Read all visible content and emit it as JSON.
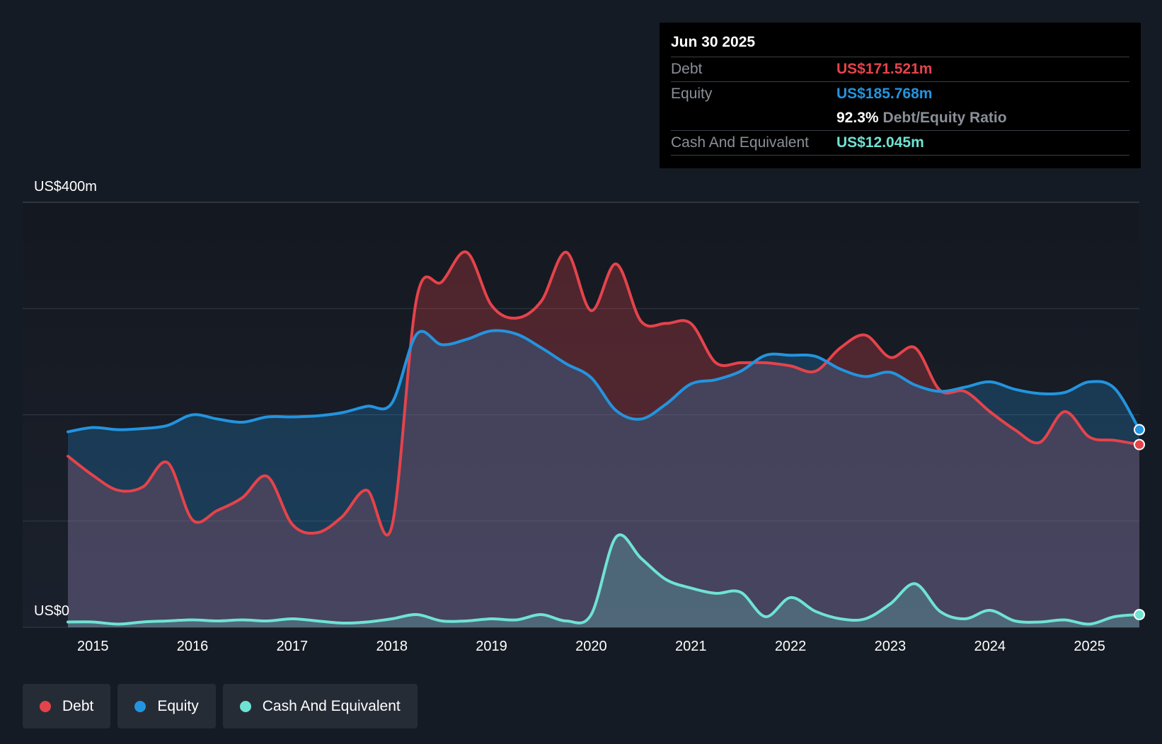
{
  "tooltip": {
    "date": "Jun 30 2025",
    "debt_label": "Debt",
    "debt_value": "US$171.521m",
    "equity_label": "Equity",
    "equity_value": "US$185.768m",
    "ratio_value": "92.3%",
    "ratio_label": "Debt/Equity Ratio",
    "cash_label": "Cash And Equivalent",
    "cash_value": "US$12.045m"
  },
  "legend": [
    {
      "label": "Debt",
      "color": "#e5434b"
    },
    {
      "label": "Equity",
      "color": "#2394df"
    },
    {
      "label": "Cash And Equivalent",
      "color": "#6fe3d3"
    }
  ],
  "colors": {
    "debt": "#e5434b",
    "equity": "#2394df",
    "cash": "#6fe3d3",
    "background": "#151b24"
  },
  "chart_data": {
    "type": "area",
    "y_top_label": "US$400m",
    "y_bottom_label": "US$0",
    "ylim": [
      0,
      400
    ],
    "xlim": [
      2014.75,
      2025.5
    ],
    "x_ticks": [
      "2015",
      "2016",
      "2017",
      "2018",
      "2019",
      "2020",
      "2021",
      "2022",
      "2023",
      "2024",
      "2025"
    ],
    "grid": true,
    "legend_position": "bottom-left",
    "series": [
      {
        "name": "Debt",
        "color": "#e5434b",
        "points": [
          [
            2014.75,
            161
          ],
          [
            2015.0,
            143
          ],
          [
            2015.25,
            129
          ],
          [
            2015.5,
            132
          ],
          [
            2015.75,
            155
          ],
          [
            2016.0,
            101
          ],
          [
            2016.25,
            110
          ],
          [
            2016.5,
            122
          ],
          [
            2016.75,
            142
          ],
          [
            2017.0,
            97
          ],
          [
            2017.25,
            89
          ],
          [
            2017.5,
            104
          ],
          [
            2017.75,
            129
          ],
          [
            2018.0,
            95
          ],
          [
            2018.25,
            310
          ],
          [
            2018.5,
            325
          ],
          [
            2018.75,
            353
          ],
          [
            2019.0,
            303
          ],
          [
            2019.25,
            291
          ],
          [
            2019.5,
            307
          ],
          [
            2019.75,
            353
          ],
          [
            2020.0,
            298
          ],
          [
            2020.25,
            342
          ],
          [
            2020.5,
            288
          ],
          [
            2020.75,
            286
          ],
          [
            2021.0,
            286
          ],
          [
            2021.25,
            249
          ],
          [
            2021.5,
            249
          ],
          [
            2021.75,
            249
          ],
          [
            2022.0,
            246
          ],
          [
            2022.25,
            241
          ],
          [
            2022.5,
            263
          ],
          [
            2022.75,
            275
          ],
          [
            2023.0,
            254
          ],
          [
            2023.25,
            263
          ],
          [
            2023.5,
            223
          ],
          [
            2023.75,
            222
          ],
          [
            2024.0,
            203
          ],
          [
            2024.25,
            186
          ],
          [
            2024.5,
            174
          ],
          [
            2024.75,
            203
          ],
          [
            2025.0,
            179
          ],
          [
            2025.25,
            176
          ],
          [
            2025.5,
            172
          ]
        ]
      },
      {
        "name": "Equity",
        "color": "#2394df",
        "points": [
          [
            2014.75,
            184
          ],
          [
            2015.0,
            188
          ],
          [
            2015.25,
            186
          ],
          [
            2015.5,
            187
          ],
          [
            2015.75,
            190
          ],
          [
            2016.0,
            200
          ],
          [
            2016.25,
            196
          ],
          [
            2016.5,
            193
          ],
          [
            2016.75,
            198
          ],
          [
            2017.0,
            198
          ],
          [
            2017.25,
            199
          ],
          [
            2017.5,
            202
          ],
          [
            2017.75,
            208
          ],
          [
            2018.0,
            211
          ],
          [
            2018.25,
            276
          ],
          [
            2018.5,
            266
          ],
          [
            2018.75,
            271
          ],
          [
            2019.0,
            279
          ],
          [
            2019.25,
            276
          ],
          [
            2019.5,
            263
          ],
          [
            2019.75,
            248
          ],
          [
            2020.0,
            235
          ],
          [
            2020.25,
            204
          ],
          [
            2020.5,
            196
          ],
          [
            2020.75,
            210
          ],
          [
            2021.0,
            229
          ],
          [
            2021.25,
            233
          ],
          [
            2021.5,
            241
          ],
          [
            2021.75,
            256
          ],
          [
            2022.0,
            256
          ],
          [
            2022.25,
            255
          ],
          [
            2022.5,
            243
          ],
          [
            2022.75,
            236
          ],
          [
            2023.0,
            240
          ],
          [
            2023.25,
            228
          ],
          [
            2023.5,
            222
          ],
          [
            2023.75,
            226
          ],
          [
            2024.0,
            231
          ],
          [
            2024.25,
            224
          ],
          [
            2024.5,
            220
          ],
          [
            2024.75,
            221
          ],
          [
            2025.0,
            231
          ],
          [
            2025.25,
            225
          ],
          [
            2025.5,
            186
          ]
        ]
      },
      {
        "name": "Cash And Equivalent",
        "color": "#6fe3d3",
        "points": [
          [
            2014.75,
            5
          ],
          [
            2015.0,
            5
          ],
          [
            2015.25,
            3
          ],
          [
            2015.5,
            5
          ],
          [
            2015.75,
            6
          ],
          [
            2016.0,
            7
          ],
          [
            2016.25,
            6
          ],
          [
            2016.5,
            7
          ],
          [
            2016.75,
            6
          ],
          [
            2017.0,
            8
          ],
          [
            2017.25,
            6
          ],
          [
            2017.5,
            4
          ],
          [
            2017.75,
            5
          ],
          [
            2018.0,
            8
          ],
          [
            2018.25,
            12
          ],
          [
            2018.5,
            6
          ],
          [
            2018.75,
            6
          ],
          [
            2019.0,
            8
          ],
          [
            2019.25,
            7
          ],
          [
            2019.5,
            12
          ],
          [
            2019.75,
            6
          ],
          [
            2020.0,
            12
          ],
          [
            2020.25,
            85
          ],
          [
            2020.5,
            65
          ],
          [
            2020.75,
            45
          ],
          [
            2021.0,
            37
          ],
          [
            2021.25,
            32
          ],
          [
            2021.5,
            33
          ],
          [
            2021.75,
            10
          ],
          [
            2022.0,
            28
          ],
          [
            2022.25,
            15
          ],
          [
            2022.5,
            8
          ],
          [
            2022.75,
            8
          ],
          [
            2023.0,
            22
          ],
          [
            2023.25,
            41
          ],
          [
            2023.5,
            15
          ],
          [
            2023.75,
            8
          ],
          [
            2024.0,
            16
          ],
          [
            2024.25,
            6
          ],
          [
            2024.5,
            5
          ],
          [
            2024.75,
            7
          ],
          [
            2025.0,
            3
          ],
          [
            2025.25,
            10
          ],
          [
            2025.5,
            12
          ]
        ]
      }
    ]
  }
}
